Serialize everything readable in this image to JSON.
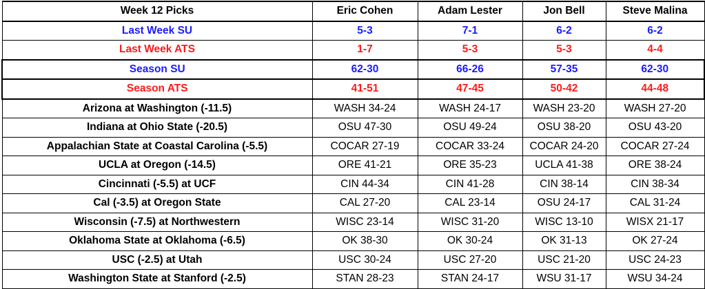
{
  "table": {
    "header": [
      "Week 12 Picks",
      "Eric Cohen",
      "Adam Lester",
      "Jon Bell",
      "Steve Malina"
    ],
    "rows": [
      [
        "Last Week SU",
        "5-3",
        "7-1",
        "6-2",
        "6-2"
      ],
      [
        "Last Week ATS",
        "1-7",
        "5-3",
        "5-3",
        "4-4"
      ],
      [
        "Season SU",
        "62-30",
        "66-26",
        "57-35",
        "62-30"
      ],
      [
        "Season ATS",
        "41-51",
        "47-45",
        "50-42",
        "44-48"
      ],
      [
        "Arizona at Washington (-11.5)",
        "WASH 34-24",
        "WASH 24-17",
        "WASH 23-20",
        "WASH 27-20"
      ],
      [
        "Indiana at Ohio State (-20.5)",
        "OSU 47-30",
        "OSU 49-24",
        "OSU 38-20",
        "OSU 43-20"
      ],
      [
        "Appalachian State at Coastal Carolina (-5.5)",
        "COCAR 27-19",
        "COCAR 33-24",
        "COCAR 24-20",
        "COCAR 27-24"
      ],
      [
        "UCLA at Oregon (-14.5)",
        "ORE 41-21",
        "ORE 35-23",
        "UCLA 41-38",
        "ORE 38-24"
      ],
      [
        "Cincinnati (-5.5) at UCF",
        "CIN 44-34",
        "CIN 41-28",
        "CIN 38-14",
        "CIN 38-34"
      ],
      [
        "Cal (-3.5) at Oregon State",
        "CAL 27-20",
        "CAL 23-14",
        "OSU 24-17",
        "CAL 31-24"
      ],
      [
        "Wisconsin (-7.5) at Northwestern",
        "WISC 23-14",
        "WISC 31-20",
        "WISC 13-10",
        "WISX 21-17"
      ],
      [
        "Oklahoma State at Oklahoma (-6.5)",
        "OK 38-30",
        "OK 30-24",
        "OK 31-13",
        "OK 27-24"
      ],
      [
        "USC (-2.5) at Utah",
        "USC 30-24",
        "USC 27-20",
        "USC 21-20",
        "USC 24-23"
      ],
      [
        "Washington State at Stanford (-2.5)",
        "STAN 28-23",
        "STAN 24-17",
        "WSU 31-17",
        "WSU 34-24"
      ]
    ]
  }
}
